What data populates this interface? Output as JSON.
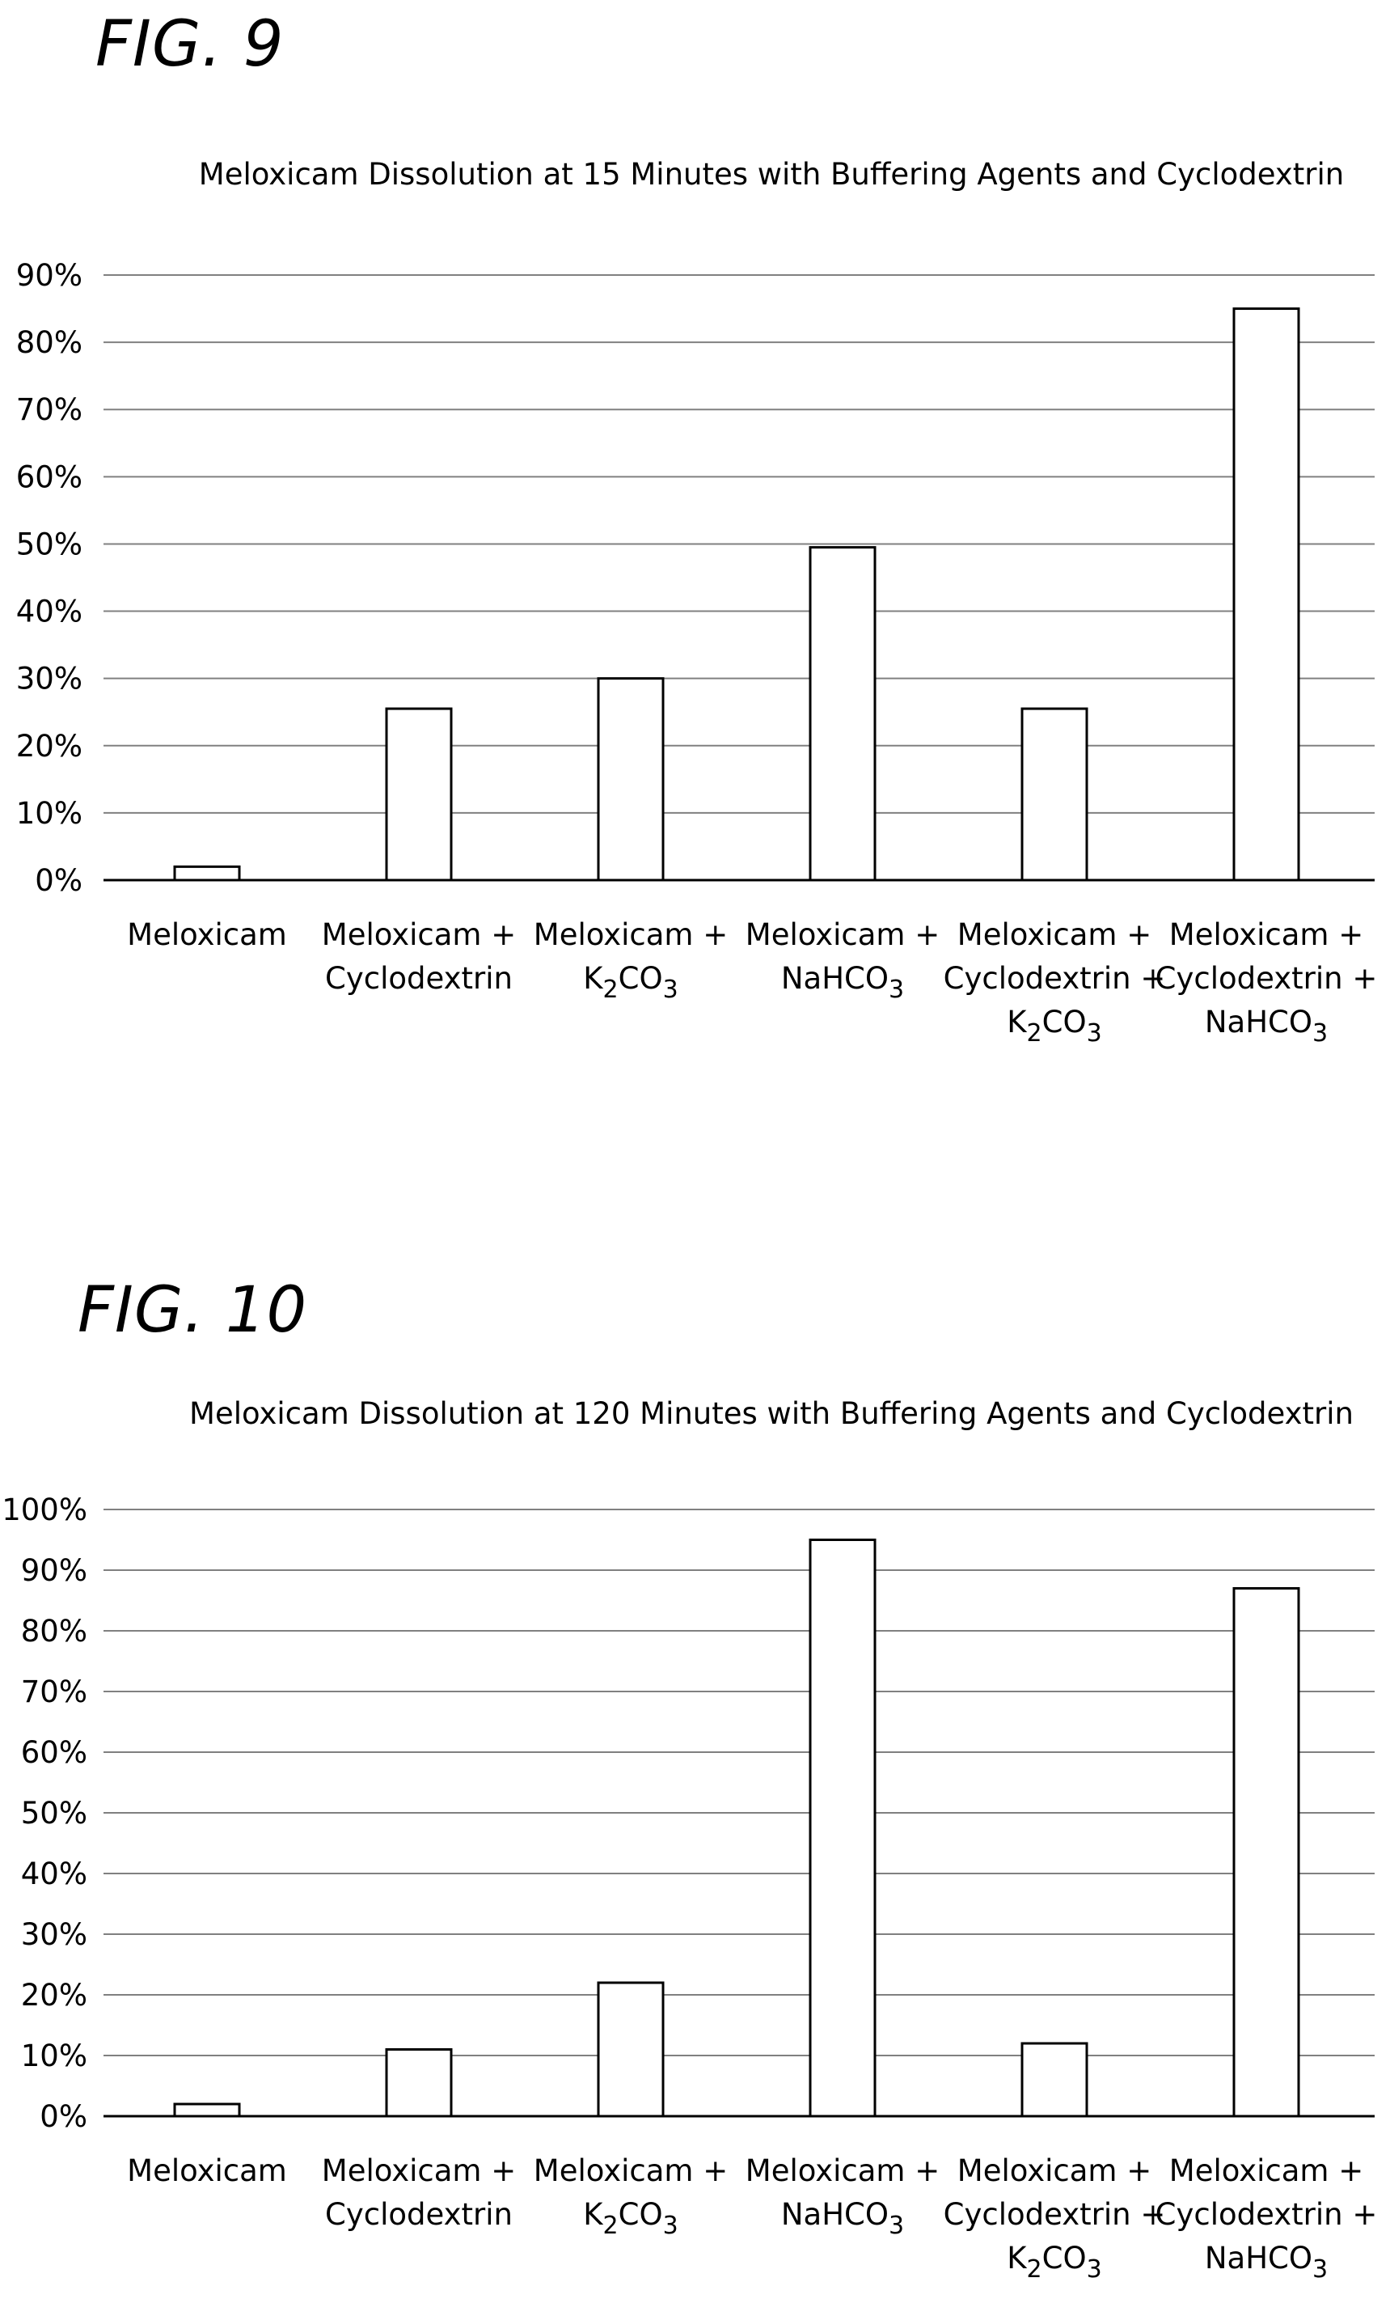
{
  "figures": [
    {
      "label": "FIG. 9"
    },
    {
      "label": "FIG. 10"
    }
  ],
  "chart_data": [
    {
      "type": "bar",
      "title": "Meloxicam Dissolution at 15 Minutes with Buffering Agents and Cyclodextrin",
      "xlabel": "",
      "ylabel": "",
      "ylim": [
        0,
        90
      ],
      "yticks": [
        "0%",
        "10%",
        "20%",
        "30%",
        "40%",
        "50%",
        "60%",
        "70%",
        "80%",
        "90%"
      ],
      "grid": true,
      "categories": [
        [
          [
            [
              "Meloxicam",
              ""
            ]
          ]
        ],
        [
          [
            [
              "Meloxicam +",
              ""
            ]
          ],
          [
            [
              "Cyclodextrin",
              ""
            ]
          ]
        ],
        [
          [
            [
              "Meloxicam +",
              ""
            ]
          ],
          [
            [
              "K",
              ""
            ],
            [
              "2",
              "sub"
            ],
            [
              "CO",
              ""
            ],
            [
              "3",
              "sub"
            ]
          ]
        ],
        [
          [
            [
              "Meloxicam +",
              ""
            ]
          ],
          [
            [
              "NaHCO",
              ""
            ],
            [
              "3",
              "sub"
            ]
          ]
        ],
        [
          [
            [
              "Meloxicam +",
              ""
            ]
          ],
          [
            [
              "Cyclodextrin +",
              ""
            ]
          ],
          [
            [
              "K",
              ""
            ],
            [
              "2",
              "sub"
            ],
            [
              "CO",
              ""
            ],
            [
              "3",
              "sub"
            ]
          ]
        ],
        [
          [
            [
              "Meloxicam +",
              ""
            ]
          ],
          [
            [
              "Cyclodextrin +",
              ""
            ]
          ],
          [
            [
              "NaHCO",
              ""
            ],
            [
              "3",
              "sub"
            ]
          ]
        ]
      ],
      "values": [
        2,
        25.5,
        30,
        49.5,
        25.5,
        85
      ]
    },
    {
      "type": "bar",
      "title": "Meloxicam Dissolution at 120 Minutes with Buffering Agents and Cyclodextrin",
      "xlabel": "",
      "ylabel": "",
      "ylim": [
        0,
        100
      ],
      "yticks": [
        "0%",
        "10%",
        "20%",
        "30%",
        "40%",
        "50%",
        "60%",
        "70%",
        "80%",
        "90%",
        "100%"
      ],
      "grid": true,
      "categories": [
        [
          [
            [
              "Meloxicam",
              ""
            ]
          ]
        ],
        [
          [
            [
              "Meloxicam +",
              ""
            ]
          ],
          [
            [
              "Cyclodextrin",
              ""
            ]
          ]
        ],
        [
          [
            [
              "Meloxicam +",
              ""
            ]
          ],
          [
            [
              "K",
              ""
            ],
            [
              "2",
              "sub"
            ],
            [
              "CO",
              ""
            ],
            [
              "3",
              "sub"
            ]
          ]
        ],
        [
          [
            [
              "Meloxicam +",
              ""
            ]
          ],
          [
            [
              "NaHCO",
              ""
            ],
            [
              "3",
              "sub"
            ]
          ]
        ],
        [
          [
            [
              "Meloxicam +",
              ""
            ]
          ],
          [
            [
              "Cyclodextrin +",
              ""
            ]
          ],
          [
            [
              "K",
              ""
            ],
            [
              "2",
              "sub"
            ],
            [
              "CO",
              ""
            ],
            [
              "3",
              "sub"
            ]
          ]
        ],
        [
          [
            [
              "Meloxicam +",
              ""
            ]
          ],
          [
            [
              "Cyclodextrin +",
              ""
            ]
          ],
          [
            [
              "NaHCO",
              ""
            ],
            [
              "3",
              "sub"
            ]
          ]
        ]
      ],
      "values": [
        2,
        11,
        22,
        95,
        12,
        87
      ]
    }
  ]
}
